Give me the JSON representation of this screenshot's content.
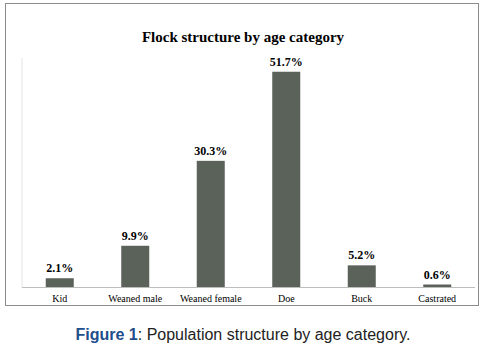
{
  "chart_data": {
    "type": "bar",
    "title": "Flock structure by age category",
    "categories": [
      "Kid",
      "Weaned male",
      "Weaned female",
      "Doe",
      "Buck",
      "Castrated"
    ],
    "values": [
      2.1,
      9.9,
      30.3,
      51.7,
      5.2,
      0.6
    ],
    "value_labels": [
      "2.1%",
      "9.9%",
      "30.3%",
      "51.7%",
      "5.2%",
      "0.6%"
    ],
    "color": "#5b6259",
    "ylim": [
      0,
      55
    ],
    "data_labels": true,
    "tick_labels": "x",
    "grid": false
  },
  "caption": {
    "label": "Figure 1",
    "text": ": Population structure by age category."
  }
}
